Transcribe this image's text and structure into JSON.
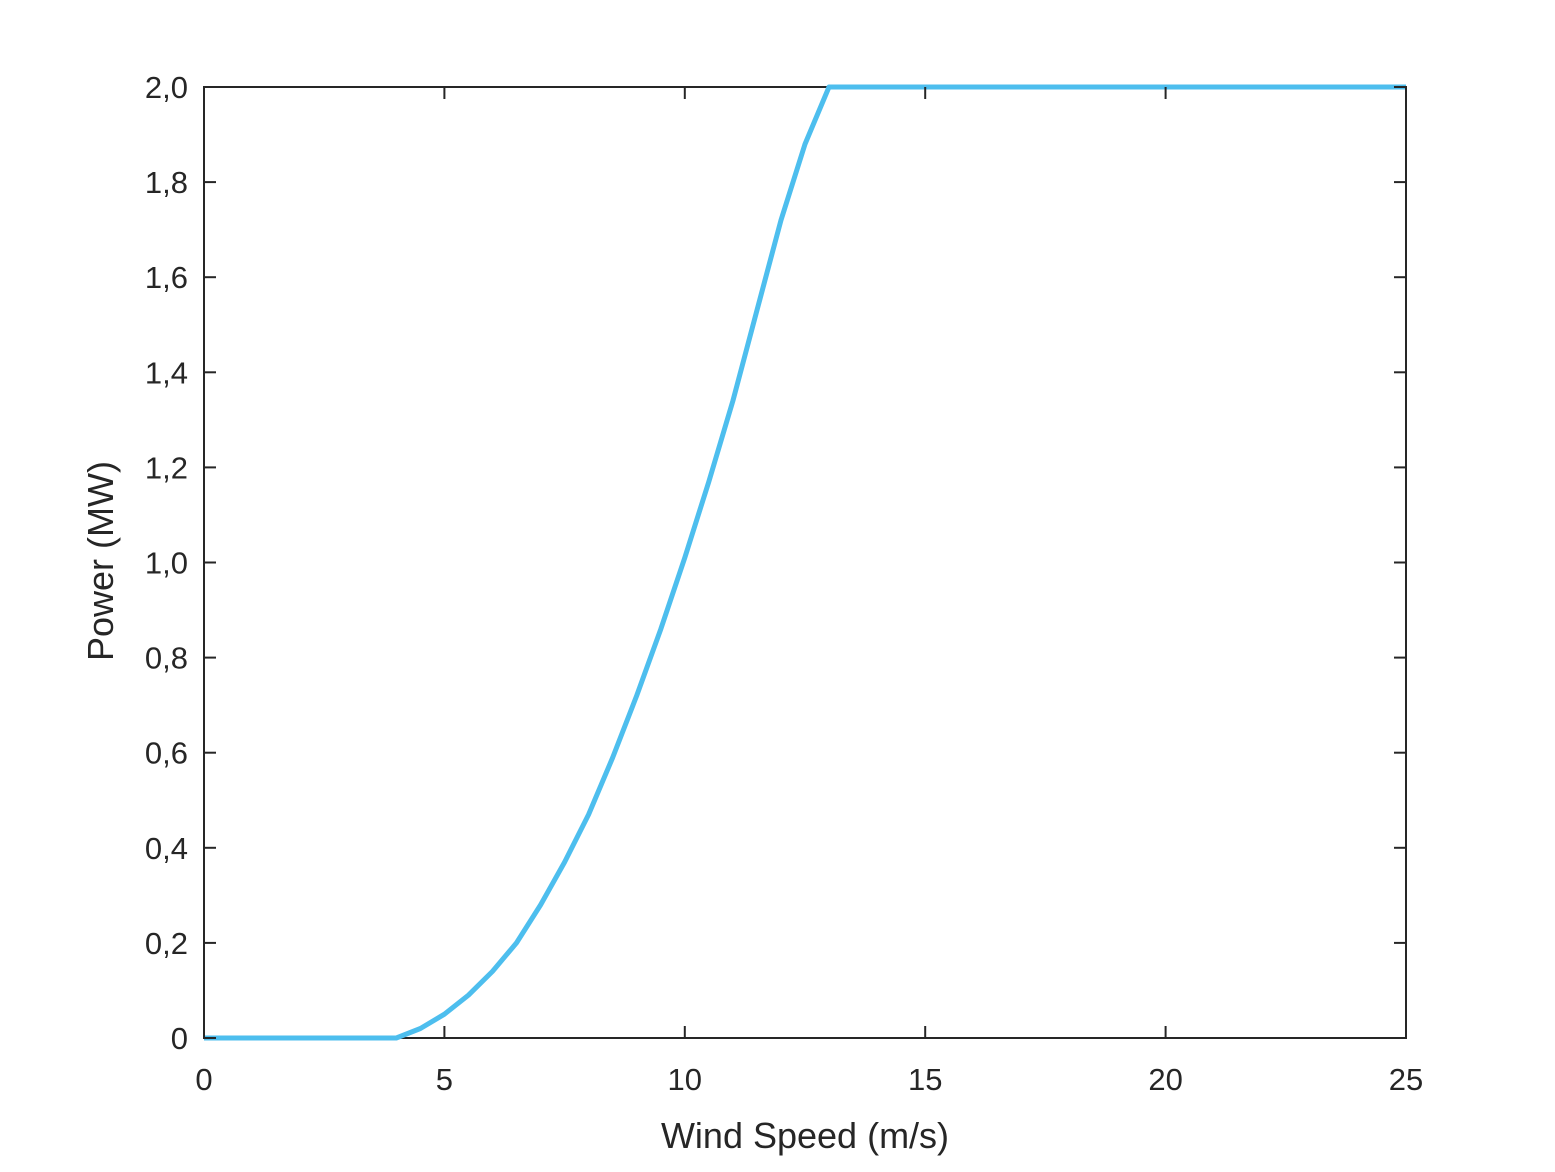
{
  "chart_data": {
    "type": "line",
    "title": "",
    "xlabel": "Wind Speed (m/s)",
    "ylabel": "Power (MW)",
    "xlim": [
      0,
      25
    ],
    "ylim": [
      0,
      2
    ],
    "xticks": [
      0,
      5,
      10,
      15,
      20,
      25
    ],
    "xtick_labels": [
      "0",
      "5",
      "10",
      "15",
      "20",
      "25"
    ],
    "yticks": [
      0,
      0.2,
      0.4,
      0.6,
      0.8,
      1.0,
      1.2,
      1.4,
      1.6,
      1.8,
      2.0
    ],
    "ytick_labels": [
      "0",
      "0,2",
      "0,4",
      "0,6",
      "0,8",
      "1,0",
      "1,2",
      "1,4",
      "1,6",
      "1,8",
      "2,0"
    ],
    "grid": false,
    "series": [
      {
        "color": "#4dbeee",
        "x": [
          0,
          4,
          4.5,
          5,
          5.5,
          6,
          6.5,
          7,
          7.5,
          8,
          8.5,
          9,
          9.5,
          10,
          10.5,
          11,
          11.5,
          12,
          12.5,
          13,
          25
        ],
        "y": [
          0,
          0,
          0.02,
          0.05,
          0.09,
          0.14,
          0.2,
          0.28,
          0.37,
          0.47,
          0.59,
          0.72,
          0.86,
          1.01,
          1.17,
          1.34,
          1.53,
          1.72,
          1.88,
          2.0,
          2.0
        ]
      }
    ]
  }
}
